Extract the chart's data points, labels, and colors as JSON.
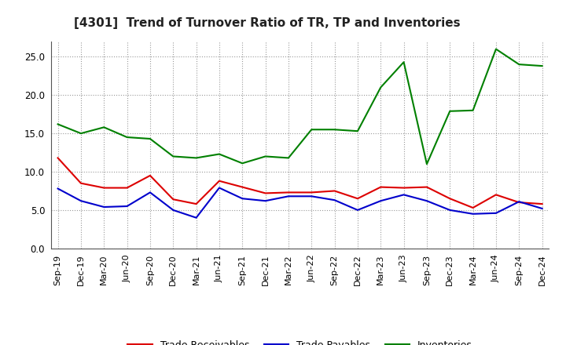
{
  "title": "[4301]  Trend of Turnover Ratio of TR, TP and Inventories",
  "labels": [
    "Sep-19",
    "Dec-19",
    "Mar-20",
    "Jun-20",
    "Sep-20",
    "Dec-20",
    "Mar-21",
    "Jun-21",
    "Sep-21",
    "Dec-21",
    "Mar-22",
    "Jun-22",
    "Sep-22",
    "Dec-22",
    "Mar-23",
    "Jun-23",
    "Sep-23",
    "Dec-23",
    "Mar-24",
    "Jun-24",
    "Sep-24",
    "Dec-24"
  ],
  "trade_receivables": [
    11.8,
    8.5,
    7.9,
    7.9,
    9.5,
    6.4,
    5.8,
    8.8,
    8.0,
    7.2,
    7.3,
    7.3,
    7.5,
    6.5,
    8.0,
    7.9,
    8.0,
    6.5,
    5.3,
    7.0,
    6.0,
    5.8
  ],
  "trade_payables": [
    7.8,
    6.2,
    5.4,
    5.5,
    7.3,
    5.0,
    4.0,
    7.9,
    6.5,
    6.2,
    6.8,
    6.8,
    6.3,
    5.0,
    6.2,
    7.0,
    6.2,
    5.0,
    4.5,
    4.6,
    6.1,
    5.2
  ],
  "inventories": [
    16.2,
    15.0,
    15.8,
    14.5,
    14.3,
    12.0,
    11.8,
    12.3,
    11.1,
    12.0,
    11.8,
    15.5,
    15.5,
    15.3,
    21.0,
    24.3,
    11.0,
    17.9,
    18.0,
    26.0,
    24.0,
    23.8
  ],
  "tr_color": "#dd0000",
  "tp_color": "#0000cc",
  "inv_color": "#008000",
  "background_color": "#ffffff",
  "ylim": [
    0,
    27
  ],
  "yticks": [
    0.0,
    5.0,
    10.0,
    15.0,
    20.0,
    25.0
  ],
  "grid_color": "#999999",
  "legend_labels": [
    "Trade Receivables",
    "Trade Payables",
    "Inventories"
  ],
  "title_fontsize": 11,
  "tick_fontsize": 8,
  "legend_fontsize": 9
}
